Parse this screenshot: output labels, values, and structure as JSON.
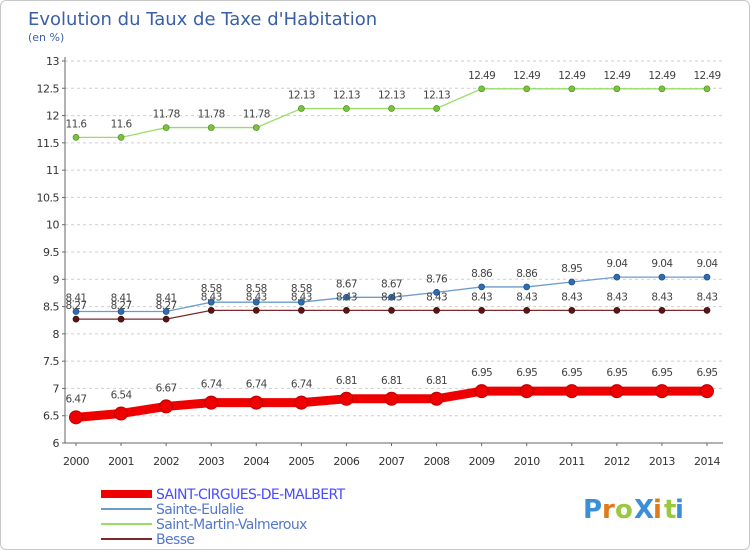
{
  "chart_data": {
    "type": "line",
    "title": "Evolution du Taux de Taxe d'Habitation",
    "ylabel": "(en %)",
    "xlabel": "",
    "ylim": [
      6,
      13
    ],
    "yticks": [
      "6",
      "6.5",
      "7",
      "7.5",
      "8",
      "8.5",
      "9",
      "9.5",
      "10",
      "10.5",
      "11",
      "11.5",
      "12",
      "12.5",
      "13"
    ],
    "x": [
      "2000",
      "2001",
      "2002",
      "2003",
      "2004",
      "2005",
      "2006",
      "2007",
      "2008",
      "2009",
      "2010",
      "2011",
      "2012",
      "2013",
      "2014"
    ],
    "grid": "horizontal dashed",
    "legend_position": "bottom-left",
    "series": [
      {
        "name": "SAINT-CIRGUES-DE-MALBERT",
        "color": "#ee0000",
        "values": [
          6.47,
          6.54,
          6.67,
          6.74,
          6.74,
          6.74,
          6.81,
          6.81,
          6.81,
          6.95,
          6.95,
          6.95,
          6.95,
          6.95,
          6.95
        ],
        "labels": [
          "6.47",
          "6.54",
          "6.67",
          "6.74",
          "6.74",
          "6.74",
          "6.81",
          "6.81",
          "6.81",
          "6.95",
          "6.95",
          "6.95",
          "6.95",
          "6.95",
          "6.95"
        ]
      },
      {
        "name": "Sainte-Eulalie",
        "color": "#6b9cce",
        "values": [
          8.41,
          8.41,
          8.41,
          8.58,
          8.58,
          8.58,
          8.67,
          8.67,
          8.76,
          8.86,
          8.86,
          8.95,
          9.04,
          9.04,
          9.04
        ],
        "labels": [
          "8.41",
          "8.41",
          "8.41",
          "8.58",
          "8.58",
          "8.58",
          "8.67",
          "8.67",
          "8.76",
          "8.86",
          "8.86",
          "8.95",
          "9.04",
          "9.04",
          "9.04"
        ]
      },
      {
        "name": "Saint-Martin-Valmeroux",
        "color": "#99dd66",
        "values": [
          11.6,
          11.6,
          11.78,
          11.78,
          11.78,
          12.13,
          12.13,
          12.13,
          12.13,
          12.49,
          12.49,
          12.49,
          12.49,
          12.49,
          12.49
        ],
        "labels": [
          "11.6",
          "11.6",
          "11.78",
          "11.78",
          "11.78",
          "12.13",
          "12.13",
          "12.13",
          "12.13",
          "12.49",
          "12.49",
          "12.49",
          "12.49",
          "12.49",
          "12.49"
        ]
      },
      {
        "name": "Besse",
        "color": "#7a2a2a",
        "values": [
          8.27,
          8.27,
          8.27,
          8.43,
          8.43,
          8.43,
          8.43,
          8.43,
          8.43,
          8.43,
          8.43,
          8.43,
          8.43,
          8.43,
          8.43
        ],
        "labels": [
          "8.27",
          "8.27",
          "8.27",
          "8.43",
          "8.43",
          "8.43",
          "8.43",
          "8.43",
          "8.43",
          "8.43",
          "8.43",
          "8.43",
          "8.43",
          "8.43",
          "8.43"
        ]
      }
    ]
  },
  "logo": {
    "text": "ProXiti",
    "letters": [
      "P",
      "r",
      "o",
      "X",
      "i",
      "t",
      "i"
    ],
    "colors": [
      "#3a8fd6",
      "#e07b1a",
      "#9ac940",
      "#3a8fd6",
      "#e07b1a",
      "#9ac940",
      "#3a8fd6"
    ]
  }
}
